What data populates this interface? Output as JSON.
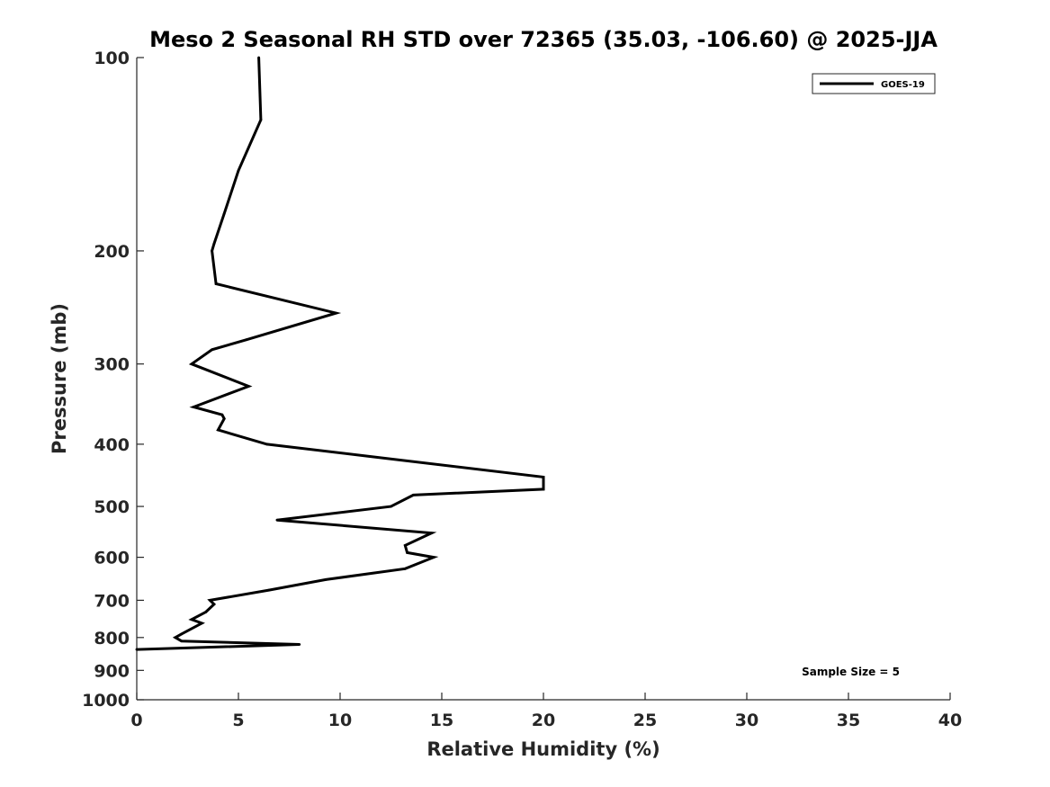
{
  "chart_data": {
    "type": "line",
    "title": "Meso 2 Seasonal RH STD over 72365 (35.03, -106.60) @ 2025-JJA",
    "xlabel": "Relative Humidity (%)",
    "ylabel": "Pressure (mb)",
    "xlim": [
      0,
      40
    ],
    "ylim": [
      100,
      1000
    ],
    "yscale": "log",
    "y_reversed": true,
    "grid": false,
    "x_ticks": [
      0,
      5,
      10,
      15,
      20,
      25,
      30,
      35,
      40
    ],
    "x_tick_labels": [
      "0",
      "5",
      "10",
      "15",
      "20",
      "25",
      "30",
      "35",
      "40"
    ],
    "y_ticks": [
      100,
      200,
      300,
      400,
      500,
      600,
      700,
      800,
      900,
      1000
    ],
    "y_tick_labels": [
      "100",
      "200",
      "300",
      "400",
      "500",
      "600",
      "700",
      "800",
      "900",
      "1000"
    ],
    "legend": {
      "location": "top-right",
      "entries": [
        "GOES-19"
      ]
    },
    "annotation": "Sample Size = 5",
    "series": [
      {
        "name": "GOES-19",
        "color": "#000000",
        "x": [
          6.0,
          6.1,
          5.0,
          4.3,
          3.8,
          3.7,
          3.9,
          9.8,
          5.4,
          3.7,
          2.7,
          5.5,
          2.8,
          4.2,
          4.3,
          4.0,
          6.4,
          20.0,
          20.0,
          13.6,
          12.5,
          6.9,
          14.5,
          13.2,
          13.3,
          14.6,
          13.2,
          9.3,
          6.5,
          3.6,
          3.8,
          3.4,
          2.7,
          3.2,
          2.2,
          1.9,
          2.2,
          8.0,
          0.0
        ],
        "y": [
          100,
          125,
          150,
          175,
          195,
          200,
          225,
          250,
          275,
          285,
          300,
          325,
          350,
          360,
          365,
          380,
          400,
          450,
          470,
          480,
          500,
          525,
          550,
          575,
          590,
          600,
          625,
          650,
          675,
          700,
          710,
          730,
          750,
          760,
          790,
          800,
          810,
          820,
          835
        ]
      }
    ]
  }
}
